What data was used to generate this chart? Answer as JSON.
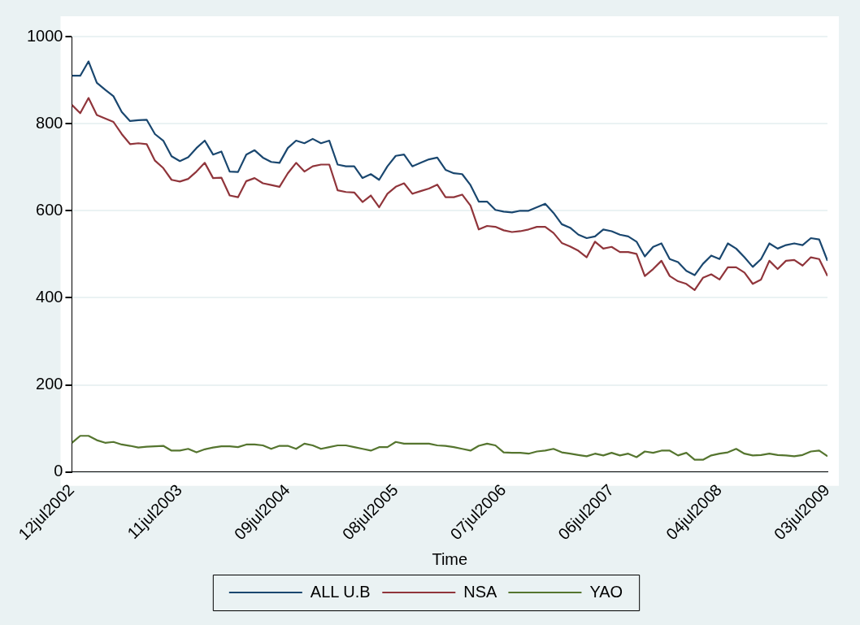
{
  "chart_data": {
    "type": "line",
    "xlabel": "Time",
    "x": [
      "2002-07-12",
      "2002-08-09",
      "2002-09-06",
      "2002-10-04",
      "2002-11-01",
      "2002-11-29",
      "2002-12-27",
      "2003-01-24",
      "2003-02-21",
      "2003-03-21",
      "2003-04-18",
      "2003-05-16",
      "2003-06-13",
      "2003-07-11",
      "2003-08-08",
      "2003-09-05",
      "2003-10-03",
      "2003-10-31",
      "2003-11-28",
      "2003-12-26",
      "2004-01-23",
      "2004-02-20",
      "2004-03-19",
      "2004-04-16",
      "2004-05-14",
      "2004-06-11",
      "2004-07-09",
      "2004-08-06",
      "2004-09-03",
      "2004-10-01",
      "2004-10-29",
      "2004-11-26",
      "2004-12-24",
      "2005-01-21",
      "2005-02-18",
      "2005-03-18",
      "2005-04-15",
      "2005-05-13",
      "2005-06-10",
      "2005-07-08",
      "2005-08-05",
      "2005-09-02",
      "2005-09-30",
      "2005-10-28",
      "2005-11-25",
      "2005-12-23",
      "2006-01-20",
      "2006-02-17",
      "2006-03-17",
      "2006-04-14",
      "2006-05-12",
      "2006-06-09",
      "2006-07-07",
      "2006-08-04",
      "2006-09-01",
      "2006-09-29",
      "2006-10-27",
      "2006-11-24",
      "2006-12-22",
      "2007-01-19",
      "2007-02-16",
      "2007-03-16",
      "2007-04-13",
      "2007-05-11",
      "2007-06-08",
      "2007-07-06",
      "2007-08-03",
      "2007-08-31",
      "2007-09-28",
      "2007-10-26",
      "2007-11-23",
      "2007-12-21",
      "2008-01-18",
      "2008-02-15",
      "2008-03-14",
      "2008-04-11",
      "2008-05-09",
      "2008-06-06",
      "2008-07-04",
      "2008-08-01",
      "2008-08-29",
      "2008-09-26",
      "2008-10-24",
      "2008-11-21",
      "2008-12-19",
      "2009-01-16",
      "2009-02-13",
      "2009-03-13",
      "2009-04-10",
      "2009-05-08",
      "2009-06-05",
      "2009-07-03"
    ],
    "series": [
      {
        "name": "ALL U.B",
        "color": "#1a476f",
        "values": [
          910,
          910,
          943,
          894,
          878,
          863,
          827,
          806,
          808,
          809,
          776,
          761,
          725,
          714,
          723,
          744,
          761,
          729,
          736,
          690,
          689,
          729,
          739,
          722,
          712,
          710,
          744,
          761,
          755,
          765,
          755,
          761,
          706,
          702,
          702,
          675,
          684,
          671,
          702,
          726,
          729,
          702,
          710,
          718,
          722,
          694,
          686,
          684,
          659,
          621,
          621,
          602,
          598,
          596,
          600,
          600,
          608,
          616,
          595,
          569,
          561,
          545,
          537,
          541,
          557,
          553,
          545,
          541,
          529,
          495,
          517,
          525,
          489,
          482,
          462,
          452,
          478,
          497,
          489,
          525,
          513,
          493,
          471,
          489,
          525,
          513,
          521,
          525,
          521,
          537,
          534,
          485
        ]
      },
      {
        "name": "NSA",
        "color": "#90353b",
        "values": [
          843,
          824,
          859,
          820,
          812,
          804,
          776,
          753,
          755,
          753,
          715,
          698,
          671,
          667,
          673,
          690,
          710,
          675,
          676,
          635,
          631,
          668,
          675,
          663,
          659,
          655,
          686,
          710,
          690,
          702,
          706,
          706,
          647,
          643,
          642,
          620,
          635,
          608,
          639,
          655,
          663,
          639,
          645,
          651,
          660,
          631,
          631,
          637,
          612,
          557,
          565,
          563,
          555,
          551,
          553,
          557,
          563,
          563,
          549,
          526,
          518,
          508,
          493,
          529,
          513,
          517,
          505,
          505,
          501,
          450,
          466,
          485,
          450,
          438,
          432,
          418,
          446,
          454,
          442,
          470,
          470,
          458,
          432,
          442,
          485,
          466,
          485,
          487,
          474,
          493,
          489,
          450
        ]
      },
      {
        "name": "YAO",
        "color": "#55752f",
        "values": [
          67,
          83,
          83,
          73,
          67,
          69,
          63,
          60,
          56,
          58,
          59,
          60,
          49,
          49,
          53,
          45,
          52,
          56,
          59,
          59,
          57,
          63,
          63,
          61,
          53,
          60,
          60,
          53,
          65,
          61,
          53,
          57,
          61,
          61,
          57,
          53,
          49,
          57,
          57,
          69,
          65,
          65,
          65,
          65,
          61,
          60,
          57,
          53,
          49,
          60,
          65,
          61,
          45,
          44,
          44,
          42,
          47,
          49,
          53,
          45,
          42,
          39,
          36,
          42,
          38,
          44,
          38,
          42,
          34,
          47,
          44,
          49,
          49,
          38,
          44,
          28,
          28,
          38,
          42,
          45,
          53,
          42,
          38,
          39,
          42,
          39,
          38,
          36,
          39,
          47,
          49,
          36
        ]
      }
    ],
    "xlim": [
      "2002-07-12",
      "2009-07-03"
    ],
    "xticks": [
      {
        "value": "2002-07-12",
        "label": "12jul2002"
      },
      {
        "value": "2003-07-11",
        "label": "11jul2003"
      },
      {
        "value": "2004-07-09",
        "label": "09jul2004"
      },
      {
        "value": "2005-07-08",
        "label": "08jul2005"
      },
      {
        "value": "2006-07-07",
        "label": "07jul2006"
      },
      {
        "value": "2007-07-06",
        "label": "06jul2007"
      },
      {
        "value": "2008-07-04",
        "label": "04jul2008"
      },
      {
        "value": "2009-07-03",
        "label": "03jul2009"
      }
    ],
    "ylim": [
      0,
      1000
    ],
    "yticks": [
      0,
      200,
      400,
      600,
      800,
      1000
    ],
    "grid": "y",
    "legend": "bottom",
    "marker": "none",
    "line_style": "solid"
  }
}
